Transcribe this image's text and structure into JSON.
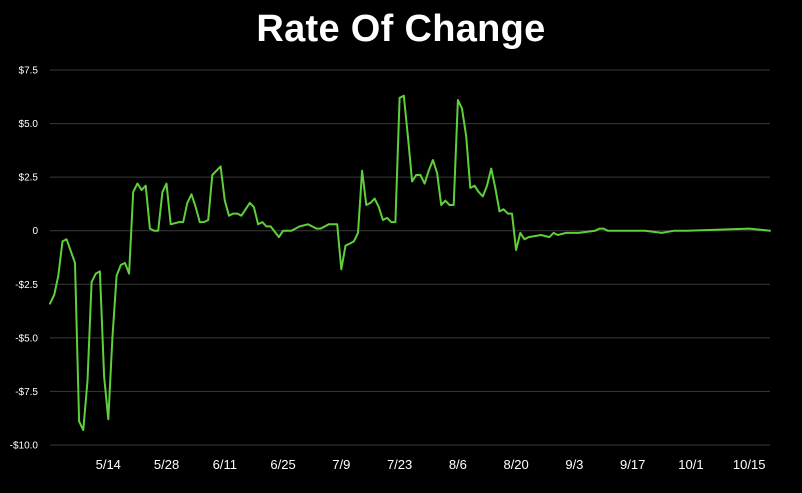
{
  "chart_data": {
    "type": "line",
    "title": "Rate Of Change",
    "xlabel": "",
    "ylabel": "",
    "ylim": [
      -10,
      7.5
    ],
    "y_ticks": [
      {
        "value": 7.5,
        "label": "$7.5"
      },
      {
        "value": 5,
        "label": "$5.0"
      },
      {
        "value": 2.5,
        "label": "$2.5"
      },
      {
        "value": 0,
        "label": "0"
      },
      {
        "value": -2.5,
        "label": "-$2.5"
      },
      {
        "value": -5,
        "label": "-$5.0"
      },
      {
        "value": -7.5,
        "label": "-$7.5"
      },
      {
        "value": -10,
        "label": "-$10.0"
      }
    ],
    "x_ticks": [
      "5/14",
      "5/28",
      "6/11",
      "6/25",
      "7/9",
      "7/23",
      "8/6",
      "8/20",
      "9/3",
      "9/17",
      "10/1",
      "10/15"
    ],
    "grid": true,
    "colors": {
      "background": "#000000",
      "line": "#5fcf3a",
      "grid": "#3a3a3a",
      "text": "#ffffff"
    },
    "series": [
      {
        "x": [
          "4/30",
          "5/1",
          "5/2",
          "5/3",
          "5/4",
          "5/6",
          "5/7",
          "5/8",
          "5/9",
          "5/10",
          "5/11",
          "5/12",
          "5/13",
          "5/14",
          "5/15",
          "5/16",
          "5/17",
          "5/18",
          "5/19",
          "5/20",
          "5/21",
          "5/22",
          "5/23",
          "5/24",
          "5/25",
          "5/26",
          "5/27",
          "5/28",
          "5/29",
          "5/31",
          "6/1",
          "6/2",
          "6/3",
          "6/4",
          "6/5",
          "6/6",
          "6/7",
          "6/8",
          "6/10",
          "6/11",
          "6/12",
          "6/13",
          "6/14",
          "6/15",
          "6/17",
          "6/18",
          "6/19",
          "6/20",
          "6/21",
          "6/22",
          "6/24",
          "6/25",
          "6/27",
          "6/28",
          "6/29",
          "7/1",
          "7/2",
          "7/3",
          "7/4",
          "7/6",
          "7/8",
          "7/9",
          "7/10",
          "7/11",
          "7/12",
          "7/13",
          "7/14",
          "7/15",
          "7/16",
          "7/17",
          "7/18",
          "7/19",
          "7/20",
          "7/21",
          "7/22",
          "7/23",
          "7/24",
          "7/25",
          "7/26",
          "7/27",
          "7/28",
          "7/29",
          "7/30",
          "7/31",
          "8/1",
          "8/2",
          "8/3",
          "8/4",
          "8/5",
          "8/6",
          "8/7",
          "8/8",
          "8/9",
          "8/10",
          "8/11",
          "8/12",
          "8/13",
          "8/14",
          "8/15",
          "8/16",
          "8/17",
          "8/18",
          "8/19",
          "8/20",
          "8/21",
          "8/22",
          "8/23",
          "8/26",
          "8/28",
          "8/29",
          "8/30",
          "9/1",
          "9/4",
          "9/8",
          "9/9",
          "9/10",
          "9/11",
          "9/13",
          "9/16",
          "9/17",
          "9/20",
          "9/24",
          "9/27",
          "9/30",
          "10/15",
          "10/20"
        ],
        "values": [
          -3.4,
          -3.0,
          -2.1,
          -0.5,
          -0.4,
          -1.5,
          -8.9,
          -9.3,
          -7.0,
          -2.4,
          -2.0,
          -1.9,
          -6.8,
          -8.8,
          -5.0,
          -2.1,
          -1.6,
          -1.5,
          -2.0,
          1.8,
          2.2,
          1.9,
          2.1,
          0.1,
          0.0,
          0.0,
          1.8,
          2.2,
          0.3,
          0.4,
          0.4,
          1.3,
          1.7,
          1.1,
          0.4,
          0.4,
          0.5,
          2.6,
          3.0,
          1.4,
          0.7,
          0.8,
          0.8,
          0.7,
          1.3,
          1.1,
          0.3,
          0.4,
          0.2,
          0.2,
          -0.3,
          0.0,
          0.0,
          0.1,
          0.2,
          0.3,
          0.2,
          0.1,
          0.1,
          0.3,
          0.3,
          -1.8,
          -0.7,
          -0.6,
          -0.5,
          -0.1,
          2.8,
          1.2,
          1.3,
          1.5,
          1.1,
          0.5,
          0.6,
          0.4,
          0.4,
          6.2,
          6.3,
          4.4,
          2.3,
          2.6,
          2.6,
          2.2,
          2.8,
          3.3,
          2.7,
          1.2,
          1.4,
          1.2,
          1.2,
          6.1,
          5.7,
          4.4,
          2.0,
          2.1,
          1.8,
          1.6,
          2.1,
          2.9,
          2.0,
          0.9,
          1.0,
          0.8,
          0.8,
          -0.9,
          -0.1,
          -0.4,
          -0.3,
          -0.2,
          -0.3,
          -0.1,
          -0.2,
          -0.1,
          -0.1,
          0.0,
          0.1,
          0.1,
          0.0,
          0.0,
          0.0,
          0.0,
          0.0,
          -0.1,
          0.0,
          0.0,
          0.1,
          0.0
        ]
      }
    ]
  }
}
